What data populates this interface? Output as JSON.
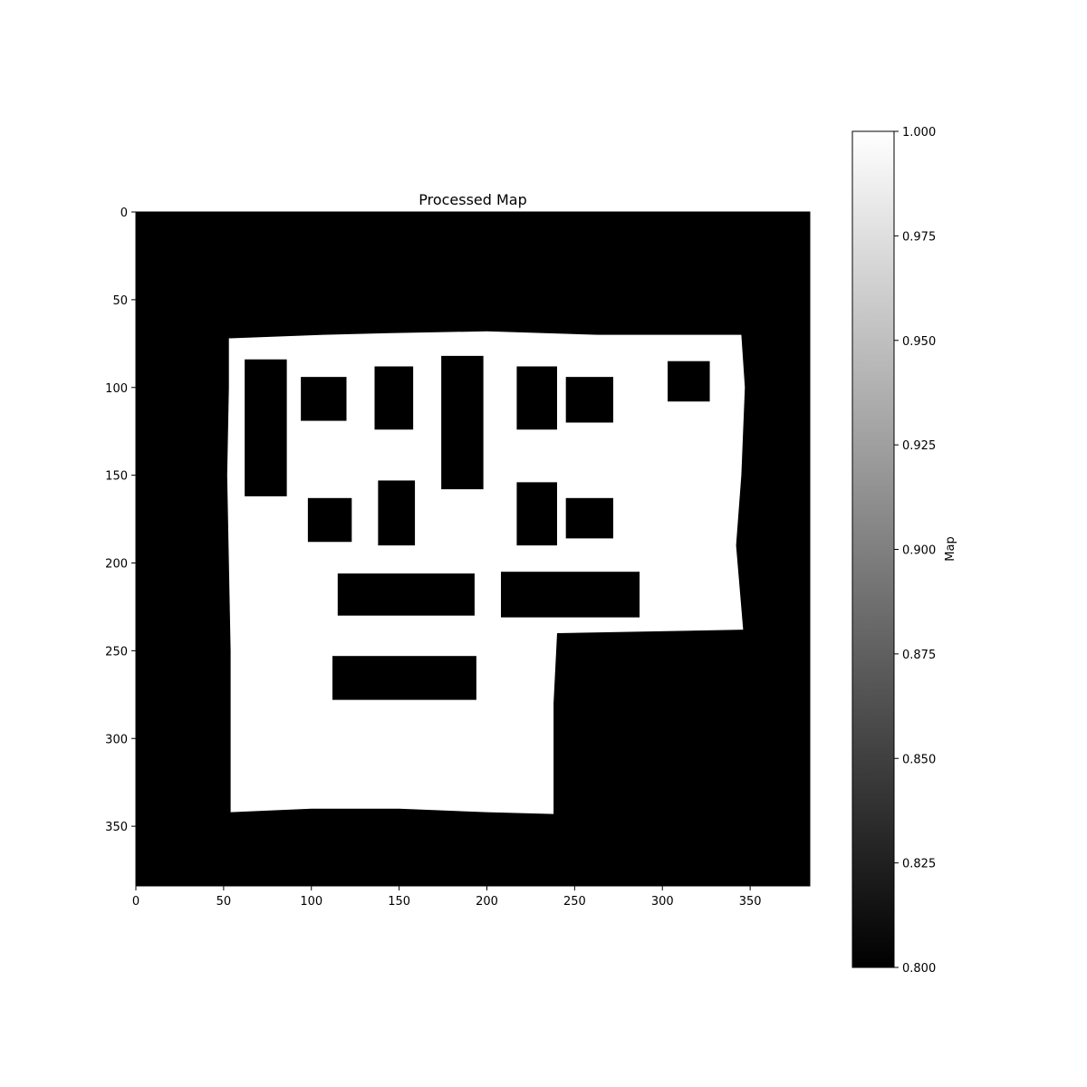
{
  "chart_data": {
    "type": "heatmap",
    "title": "Processed Map",
    "xlim": [
      0,
      384
    ],
    "ylim": [
      384,
      0
    ],
    "x_ticks": [
      0,
      50,
      100,
      150,
      200,
      250,
      300,
      350
    ],
    "y_ticks": [
      0,
      50,
      100,
      150,
      200,
      250,
      300,
      350
    ],
    "grid": false,
    "colormap": "gray",
    "background_value": 0.8,
    "background_color": "#000000",
    "free_space_color": "#ffffff",
    "colorbar": {
      "label": "Map",
      "range": [
        0.8,
        1.0
      ],
      "ticks": [
        "0.800",
        "0.825",
        "0.850",
        "0.875",
        "0.900",
        "0.925",
        "0.950",
        "0.975",
        "1.000"
      ]
    },
    "free_region": [
      [
        53,
        72
      ],
      [
        107,
        70
      ],
      [
        145,
        69
      ],
      [
        200,
        68
      ],
      [
        263,
        70
      ],
      [
        345,
        70
      ],
      [
        347,
        100
      ],
      [
        345,
        150
      ],
      [
        342,
        190
      ],
      [
        346,
        238
      ],
      [
        240,
        240
      ],
      [
        238,
        280
      ],
      [
        238,
        343
      ],
      [
        200,
        342
      ],
      [
        150,
        340
      ],
      [
        100,
        340
      ],
      [
        54,
        342
      ],
      [
        54,
        250
      ],
      [
        52,
        150
      ],
      [
        53,
        100
      ]
    ],
    "obstacles": [
      {
        "x": [
          62,
          86
        ],
        "y": [
          84,
          162
        ]
      },
      {
        "x": [
          94,
          120
        ],
        "y": [
          94,
          119
        ]
      },
      {
        "x": [
          136,
          158
        ],
        "y": [
          88,
          124
        ]
      },
      {
        "x": [
          174,
          198
        ],
        "y": [
          82,
          158
        ]
      },
      {
        "x": [
          217,
          240
        ],
        "y": [
          88,
          124
        ]
      },
      {
        "x": [
          245,
          272
        ],
        "y": [
          94,
          120
        ]
      },
      {
        "x": [
          303,
          327
        ],
        "y": [
          85,
          108
        ]
      },
      {
        "x": [
          98,
          123
        ],
        "y": [
          163,
          188
        ]
      },
      {
        "x": [
          138,
          159
        ],
        "y": [
          153,
          190
        ]
      },
      {
        "x": [
          217,
          240
        ],
        "y": [
          154,
          190
        ]
      },
      {
        "x": [
          245,
          272
        ],
        "y": [
          163,
          186
        ]
      },
      {
        "x": [
          115,
          193
        ],
        "y": [
          206,
          230
        ]
      },
      {
        "x": [
          208,
          287
        ],
        "y": [
          205,
          231
        ]
      },
      {
        "x": [
          112,
          194
        ],
        "y": [
          253,
          278
        ]
      }
    ]
  }
}
